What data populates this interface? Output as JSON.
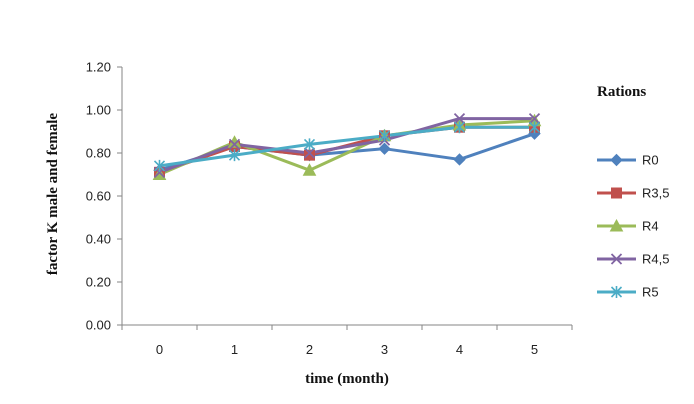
{
  "chart_data": {
    "type": "line",
    "xlabel": "time (month)",
    "ylabel": "factor K male and female",
    "x": [
      0,
      1,
      2,
      3,
      4,
      5
    ],
    "xticks": [
      "0",
      "1",
      "2",
      "3",
      "4",
      "5"
    ],
    "ylim": [
      0,
      1.2
    ],
    "yticks": [
      "0.00",
      "0.20",
      "0.40",
      "0.60",
      "0.80",
      "1.00",
      "1.20"
    ],
    "grid": false,
    "legend_title": "Rations",
    "legend_position": "right",
    "series": [
      {
        "name": "R0",
        "color": "#4F81BD",
        "marker": "diamond",
        "values": [
          0.72,
          0.83,
          0.79,
          0.82,
          0.77,
          0.89
        ]
      },
      {
        "name": "R3,5",
        "color": "#C0504D",
        "marker": "square",
        "values": [
          0.71,
          0.83,
          0.79,
          0.88,
          0.92,
          0.92
        ]
      },
      {
        "name": "R4",
        "color": "#9BBB59",
        "marker": "triangle",
        "values": [
          0.7,
          0.85,
          0.72,
          0.88,
          0.93,
          0.95
        ]
      },
      {
        "name": "R4,5",
        "color": "#8064A2",
        "marker": "x",
        "values": [
          0.71,
          0.84,
          0.8,
          0.86,
          0.96,
          0.96
        ]
      },
      {
        "name": "R5",
        "color": "#4BACC6",
        "marker": "star",
        "values": [
          0.74,
          0.79,
          0.84,
          0.88,
          0.92,
          0.92
        ]
      }
    ]
  }
}
